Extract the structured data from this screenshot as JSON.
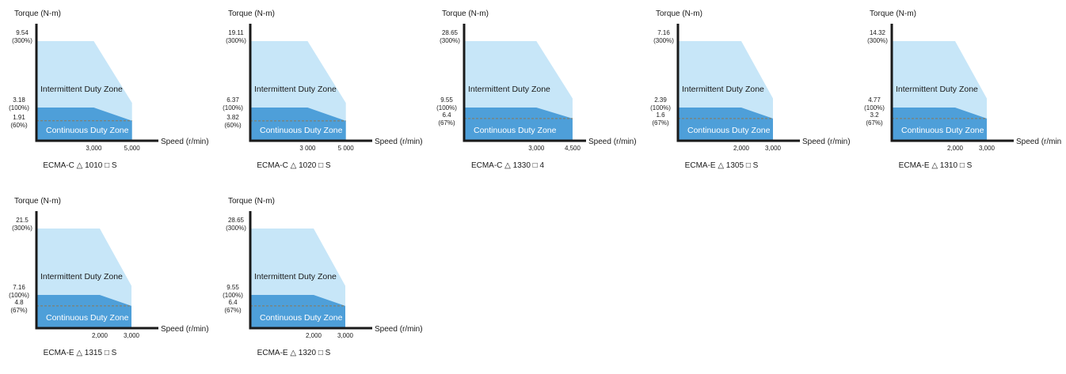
{
  "chart_data": [
    {
      "type": "area",
      "model": "ECMA-C △ 1010 □ S",
      "ylabel": "Torque (N-m)",
      "xlabel": "Speed (r/min)",
      "peak": "9.54",
      "peak_pct": "(300%)",
      "rated": "3.18",
      "rated_pct": "(100%)",
      "derate": "1.91",
      "derate_pct": "(60%)",
      "x1": "3,000",
      "x2": "5,000",
      "x1_val": 3000,
      "x2_val": 5000,
      "xmax": 5800,
      "peak_val": 9.54,
      "rated_val": 3.18,
      "derate_val": 1.91,
      "zone_intermittent": "Intermittent Duty Zone",
      "zone_continuous": "Continuous Duty Zone"
    },
    {
      "type": "area",
      "model": "ECMA-C △ 1020 □ S",
      "ylabel": "Torque (N-m)",
      "xlabel": "Speed (r/min)",
      "peak": "19.11",
      "peak_pct": "(300%)",
      "rated": "6.37",
      "rated_pct": "(100%)",
      "derate": "3.82",
      "derate_pct": "(60%)",
      "x1": "3 000",
      "x2": "5 000",
      "x1_val": 3000,
      "x2_val": 5000,
      "xmax": 5800,
      "peak_val": 19.11,
      "rated_val": 6.37,
      "derate_val": 3.82,
      "zone_intermittent": "Intermittent Duty Zone",
      "zone_continuous": "Continuous Duty Zone"
    },
    {
      "type": "area",
      "model": "ECMA-C △ 1330 □ 4",
      "ylabel": "Torque (N-m)",
      "xlabel": "Speed (r/min)",
      "peak": "28.65",
      "peak_pct": "(300%)",
      "rated": "9.55",
      "rated_pct": "(100%)",
      "derate": "6.4",
      "derate_pct": "(67%)",
      "x1": "3,000",
      "x2": "4,500",
      "x1_val": 3000,
      "x2_val": 4500,
      "xmax": 4600,
      "peak_val": 28.65,
      "rated_val": 9.55,
      "derate_val": 6.4,
      "zone_intermittent": "Intermittent Duty Zone",
      "zone_continuous": "Continuous Duty Zone"
    },
    {
      "type": "area",
      "model": "ECMA-E △ 1305 □ S",
      "ylabel": "Torque (N-m)",
      "xlabel": "Speed (r/min)",
      "peak": "7.16",
      "peak_pct": "(300%)",
      "rated": "2.39",
      "rated_pct": "(100%)",
      "derate": "1.6",
      "derate_pct": "(67%)",
      "x1": "2,000",
      "x2": "3,000",
      "x1_val": 2000,
      "x2_val": 3000,
      "xmax": 3500,
      "peak_val": 7.16,
      "rated_val": 2.39,
      "derate_val": 1.6,
      "zone_intermittent": "Intermittent Duty Zone",
      "zone_continuous": "Continuous Duty Zone"
    },
    {
      "type": "area",
      "model": "ECMA-E △ 1310 □ S",
      "ylabel": "Torque (N-m)",
      "xlabel": "Speed (r/min",
      "peak": "14.32",
      "peak_pct": "(300%)",
      "rated": "4.77",
      "rated_pct": "(100%)",
      "derate": "3.2",
      "derate_pct": "(67%)",
      "x1": "2,000",
      "x2": "3,000",
      "x1_val": 2000,
      "x2_val": 3000,
      "xmax": 3500,
      "peak_val": 14.32,
      "rated_val": 4.77,
      "derate_val": 3.2,
      "zone_intermittent": "Intermittent Duty Zone",
      "zone_continuous": "Continuous Duty Zone"
    },
    {
      "type": "area",
      "model": "ECMA-E △ 1315 □ S",
      "ylabel": "Torque (N-m)",
      "xlabel": "Speed (r/min)",
      "peak": "21.5",
      "peak_pct": "(300%)",
      "rated": "7.16",
      "rated_pct": "(100%)",
      "derate": "4.8",
      "derate_pct": "(67%)",
      "x1": "2,000",
      "x2": "3,000",
      "x1_val": 2000,
      "x2_val": 3000,
      "xmax": 3500,
      "peak_val": 21.5,
      "rated_val": 7.16,
      "derate_val": 4.8,
      "zone_intermittent": "Intermittent Duty Zone",
      "zone_continuous": "Continuous Duty Zone"
    },
    {
      "type": "area",
      "model": "ECMA-E △ 1320 □ S",
      "ylabel": "Torque (N-m)",
      "xlabel": "Speed (r/min)",
      "peak": "28.65",
      "peak_pct": "(300%)",
      "rated": "9.55",
      "rated_pct": "(100%)",
      "derate": "6.4",
      "derate_pct": "(67%)",
      "x1": "2,000",
      "x2": "3,000",
      "x1_val": 2000,
      "x2_val": 3000,
      "xmax": 3500,
      "peak_val": 28.65,
      "rated_val": 9.55,
      "derate_val": 6.4,
      "zone_intermittent": "Intermittent Duty Zone",
      "zone_continuous": "Continuous Duty Zone"
    }
  ],
  "colors": {
    "intermittent": "#c7e6f8",
    "continuous": "#4e9fd9",
    "axis": "#1a1a1a",
    "dashed": "#8a7a5a"
  }
}
